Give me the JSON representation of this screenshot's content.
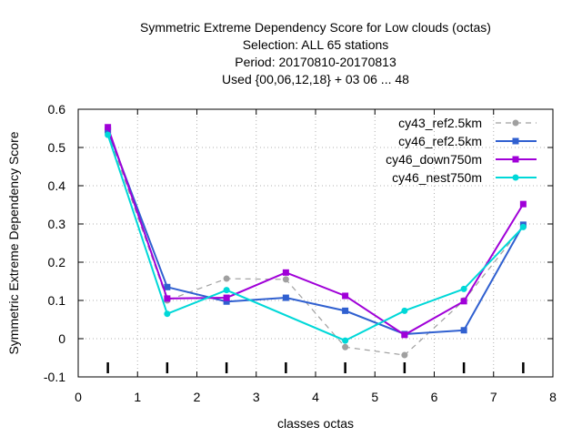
{
  "chart_data": {
    "type": "line",
    "title_lines": [
      "Symmetric Extreme Dependency Score  for Low clouds (octas)",
      "Selection: ALL      65 stations",
      "Period: 20170810-20170813",
      "Used {00,06,12,18} + 03 06 ... 48"
    ],
    "xlabel": "classes octas",
    "ylabel": "Symmetric Extreme Dependency Score",
    "xlim": [
      0,
      8
    ],
    "ylim": [
      -0.1,
      0.6
    ],
    "xticks": [
      "0",
      "1",
      "2",
      "3",
      "4",
      "5",
      "6",
      "7",
      "8"
    ],
    "yticks": [
      "-0.1",
      "0",
      "0.1",
      "0.2",
      "0.3",
      "0.4",
      "0.5",
      "0.6"
    ],
    "grid": true,
    "legend_position": "top-right",
    "x": [
      0.5,
      1.5,
      2.5,
      3.5,
      4.5,
      5.5,
      6.5,
      7.5
    ],
    "series": [
      {
        "name": "cy43_ref2.5km",
        "color": "#a0a0a0",
        "dashed": true,
        "marker": "circle",
        "values": [
          0.54,
          0.1,
          0.157,
          0.155,
          -0.022,
          -0.043,
          0.1,
          0.295
        ]
      },
      {
        "name": "cy46_ref2.5km",
        "color": "#3060d0",
        "dashed": false,
        "marker": "square",
        "values": [
          0.545,
          0.135,
          0.097,
          0.107,
          0.073,
          0.012,
          0.022,
          0.298
        ]
      },
      {
        "name": "cy46_down750m",
        "color": "#a000d8",
        "dashed": false,
        "marker": "square",
        "values": [
          0.553,
          0.105,
          0.107,
          0.173,
          0.112,
          0.01,
          0.098,
          0.352
        ]
      },
      {
        "name": "cy46_nest750m",
        "color": "#00d8d8",
        "dashed": false,
        "marker": "circle",
        "values": [
          0.533,
          0.065,
          0.127,
          null,
          -0.005,
          0.073,
          0.13,
          0.292
        ]
      }
    ]
  }
}
